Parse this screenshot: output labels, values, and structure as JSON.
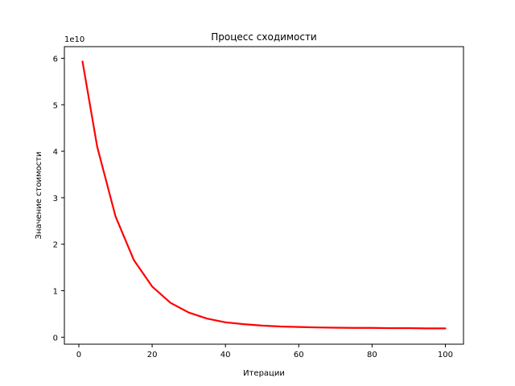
{
  "chart_data": {
    "type": "line",
    "title": "Процесс сходимости",
    "xlabel": "Итерации",
    "ylabel": "Значение стоимости",
    "y_offset_label": "1e10",
    "xlim": [
      -3.95,
      104.95
    ],
    "ylim": [
      -0.15,
      6.25
    ],
    "x_ticks": [
      0,
      20,
      40,
      60,
      80,
      100
    ],
    "x_tick_labels": [
      "0",
      "20",
      "40",
      "60",
      "80",
      "100"
    ],
    "y_ticks": [
      0,
      1,
      2,
      3,
      4,
      5,
      6
    ],
    "y_tick_labels": [
      "0",
      "1",
      "2",
      "3",
      "4",
      "5",
      "6"
    ],
    "grid": false,
    "series": [
      {
        "color": "#ff0000",
        "x": [
          1,
          5,
          10,
          15,
          20,
          25,
          30,
          35,
          40,
          45,
          50,
          55,
          60,
          65,
          70,
          75,
          80,
          85,
          90,
          95,
          100
        ],
        "values": [
          5.93,
          4.1,
          2.6,
          1.66,
          1.09,
          0.74,
          0.53,
          0.4,
          0.32,
          0.28,
          0.25,
          0.23,
          0.22,
          0.21,
          0.205,
          0.2,
          0.2,
          0.195,
          0.195,
          0.19,
          0.19
        ]
      }
    ]
  }
}
